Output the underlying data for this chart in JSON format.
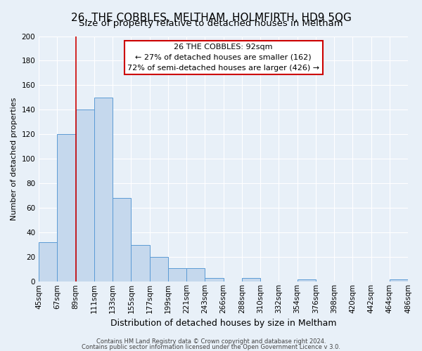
{
  "title": "26, THE COBBLES, MELTHAM, HOLMFIRTH, HD9 5QG",
  "subtitle": "Size of property relative to detached houses in Meltham",
  "xlabel": "Distribution of detached houses by size in Meltham",
  "ylabel": "Number of detached properties",
  "bins": [
    "45sqm",
    "67sqm",
    "89sqm",
    "111sqm",
    "133sqm",
    "155sqm",
    "177sqm",
    "199sqm",
    "221sqm",
    "243sqm",
    "266sqm",
    "288sqm",
    "310sqm",
    "332sqm",
    "354sqm",
    "376sqm",
    "398sqm",
    "420sqm",
    "442sqm",
    "464sqm",
    "486sqm"
  ],
  "values": [
    32,
    120,
    140,
    150,
    68,
    30,
    20,
    11,
    11,
    3,
    0,
    3,
    0,
    0,
    2,
    0,
    0,
    0,
    0,
    2
  ],
  "bar_color": "#c5d8ed",
  "bar_edge_color": "#5b9bd5",
  "vline_x": 2,
  "vline_color": "#cc0000",
  "ylim": [
    0,
    200
  ],
  "yticks": [
    0,
    20,
    40,
    60,
    80,
    100,
    120,
    140,
    160,
    180,
    200
  ],
  "annotation_title": "26 THE COBBLES: 92sqm",
  "annotation_line1": "← 27% of detached houses are smaller (162)",
  "annotation_line2": "72% of semi-detached houses are larger (426) →",
  "footer1": "Contains HM Land Registry data © Crown copyright and database right 2024.",
  "footer2": "Contains public sector information licensed under the Open Government Licence v 3.0.",
  "background_color": "#e8f0f8",
  "grid_color": "#ffffff",
  "title_fontsize": 11,
  "subtitle_fontsize": 9.5,
  "annotation_fontsize": 8,
  "axis_fontsize": 7.5,
  "ylabel_fontsize": 8,
  "xlabel_fontsize": 9
}
